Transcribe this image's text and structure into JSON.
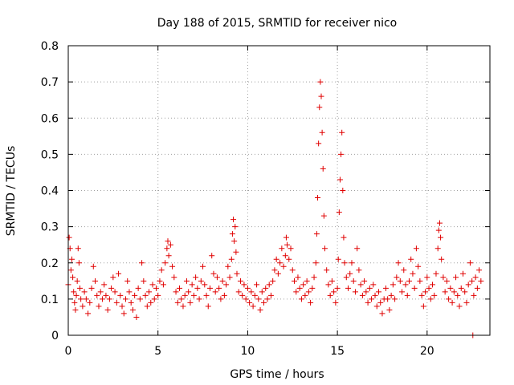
{
  "chart_data": {
    "type": "scatter",
    "title": "Day 188 of 2015, SRMTID for receiver nico",
    "xlabel": "GPS time / hours",
    "ylabel": "SRMTID / TECUs",
    "xlim": [
      0,
      23.5
    ],
    "ylim": [
      0,
      0.8
    ],
    "xticks": [
      0,
      5,
      10,
      15,
      20
    ],
    "yticks": [
      0,
      0.1,
      0.2,
      0.3,
      0.4,
      0.5,
      0.6,
      0.7,
      0.8
    ],
    "xtick_labels": [
      "0",
      "5",
      "10",
      "15",
      "20"
    ],
    "ytick_labels": [
      "0",
      "0.1",
      "0.2",
      "0.3",
      "0.4",
      "0.5",
      "0.6",
      "0.7",
      "0.8"
    ],
    "grid": true,
    "legend": "none",
    "marker": "plus",
    "color": "#e00000",
    "series": [
      {
        "name": "SRMTID",
        "points": [
          [
            0.0,
            0.14
          ],
          [
            0.05,
            0.27
          ],
          [
            0.1,
            0.24
          ],
          [
            0.15,
            0.18
          ],
          [
            0.2,
            0.21
          ],
          [
            0.25,
            0.16
          ],
          [
            0.3,
            0.12
          ],
          [
            0.35,
            0.09
          ],
          [
            0.4,
            0.07
          ],
          [
            0.45,
            0.11
          ],
          [
            0.5,
            0.15
          ],
          [
            0.55,
            0.24
          ],
          [
            0.6,
            0.2
          ],
          [
            0.65,
            0.13
          ],
          [
            0.7,
            0.1
          ],
          [
            0.8,
            0.08
          ],
          [
            0.9,
            0.12
          ],
          [
            1.0,
            0.1
          ],
          [
            1.1,
            0.06
          ],
          [
            1.2,
            0.09
          ],
          [
            1.3,
            0.13
          ],
          [
            1.4,
            0.19
          ],
          [
            1.5,
            0.15
          ],
          [
            1.6,
            0.11
          ],
          [
            1.7,
            0.08
          ],
          [
            1.8,
            0.12
          ],
          [
            1.9,
            0.1
          ],
          [
            2.0,
            0.14
          ],
          [
            2.1,
            0.11
          ],
          [
            2.2,
            0.07
          ],
          [
            2.3,
            0.1
          ],
          [
            2.4,
            0.13
          ],
          [
            2.5,
            0.16
          ],
          [
            2.6,
            0.12
          ],
          [
            2.7,
            0.09
          ],
          [
            2.8,
            0.17
          ],
          [
            2.9,
            0.11
          ],
          [
            3.0,
            0.08
          ],
          [
            3.1,
            0.06
          ],
          [
            3.2,
            0.1
          ],
          [
            3.3,
            0.15
          ],
          [
            3.4,
            0.12
          ],
          [
            3.5,
            0.09
          ],
          [
            3.6,
            0.07
          ],
          [
            3.7,
            0.11
          ],
          [
            3.8,
            0.05
          ],
          [
            3.9,
            0.13
          ],
          [
            4.0,
            0.1
          ],
          [
            4.1,
            0.2
          ],
          [
            4.2,
            0.15
          ],
          [
            4.3,
            0.11
          ],
          [
            4.4,
            0.08
          ],
          [
            4.5,
            0.12
          ],
          [
            4.6,
            0.09
          ],
          [
            4.7,
            0.14
          ],
          [
            4.8,
            0.1
          ],
          [
            4.9,
            0.13
          ],
          [
            5.0,
            0.11
          ],
          [
            5.1,
            0.15
          ],
          [
            5.2,
            0.18
          ],
          [
            5.3,
            0.14
          ],
          [
            5.4,
            0.2
          ],
          [
            5.5,
            0.24
          ],
          [
            5.55,
            0.26
          ],
          [
            5.6,
            0.22
          ],
          [
            5.7,
            0.25
          ],
          [
            5.8,
            0.19
          ],
          [
            5.9,
            0.16
          ],
          [
            6.0,
            0.12
          ],
          [
            6.1,
            0.09
          ],
          [
            6.2,
            0.13
          ],
          [
            6.3,
            0.1
          ],
          [
            6.4,
            0.08
          ],
          [
            6.5,
            0.11
          ],
          [
            6.6,
            0.15
          ],
          [
            6.7,
            0.12
          ],
          [
            6.8,
            0.09
          ],
          [
            6.9,
            0.14
          ],
          [
            7.0,
            0.11
          ],
          [
            7.1,
            0.16
          ],
          [
            7.2,
            0.13
          ],
          [
            7.3,
            0.1
          ],
          [
            7.4,
            0.15
          ],
          [
            7.5,
            0.19
          ],
          [
            7.6,
            0.14
          ],
          [
            7.7,
            0.11
          ],
          [
            7.8,
            0.08
          ],
          [
            7.9,
            0.13
          ],
          [
            8.0,
            0.22
          ],
          [
            8.1,
            0.17
          ],
          [
            8.2,
            0.12
          ],
          [
            8.3,
            0.16
          ],
          [
            8.4,
            0.13
          ],
          [
            8.5,
            0.1
          ],
          [
            8.6,
            0.15
          ],
          [
            8.7,
            0.11
          ],
          [
            8.8,
            0.14
          ],
          [
            8.9,
            0.19
          ],
          [
            9.0,
            0.16
          ],
          [
            9.1,
            0.21
          ],
          [
            9.15,
            0.28
          ],
          [
            9.2,
            0.32
          ],
          [
            9.25,
            0.26
          ],
          [
            9.3,
            0.3
          ],
          [
            9.35,
            0.23
          ],
          [
            9.4,
            0.17
          ],
          [
            9.5,
            0.12
          ],
          [
            9.6,
            0.15
          ],
          [
            9.7,
            0.11
          ],
          [
            9.8,
            0.14
          ],
          [
            9.9,
            0.1
          ],
          [
            10.0,
            0.13
          ],
          [
            10.1,
            0.09
          ],
          [
            10.2,
            0.12
          ],
          [
            10.3,
            0.08
          ],
          [
            10.4,
            0.11
          ],
          [
            10.5,
            0.14
          ],
          [
            10.6,
            0.1
          ],
          [
            10.7,
            0.07
          ],
          [
            10.8,
            0.12
          ],
          [
            10.9,
            0.09
          ],
          [
            11.0,
            0.13
          ],
          [
            11.1,
            0.1
          ],
          [
            11.2,
            0.14
          ],
          [
            11.3,
            0.11
          ],
          [
            11.4,
            0.15
          ],
          [
            11.5,
            0.18
          ],
          [
            11.6,
            0.21
          ],
          [
            11.7,
            0.17
          ],
          [
            11.8,
            0.2
          ],
          [
            11.9,
            0.24
          ],
          [
            12.0,
            0.19
          ],
          [
            12.1,
            0.22
          ],
          [
            12.15,
            0.27
          ],
          [
            12.2,
            0.25
          ],
          [
            12.3,
            0.21
          ],
          [
            12.4,
            0.24
          ],
          [
            12.5,
            0.18
          ],
          [
            12.6,
            0.15
          ],
          [
            12.7,
            0.12
          ],
          [
            12.8,
            0.16
          ],
          [
            12.9,
            0.13
          ],
          [
            13.0,
            0.1
          ],
          [
            13.1,
            0.14
          ],
          [
            13.2,
            0.11
          ],
          [
            13.3,
            0.15
          ],
          [
            13.4,
            0.12
          ],
          [
            13.5,
            0.09
          ],
          [
            13.6,
            0.13
          ],
          [
            13.7,
            0.16
          ],
          [
            13.8,
            0.2
          ],
          [
            13.85,
            0.28
          ],
          [
            13.9,
            0.38
          ],
          [
            13.95,
            0.53
          ],
          [
            14.0,
            0.63
          ],
          [
            14.05,
            0.7
          ],
          [
            14.1,
            0.66
          ],
          [
            14.15,
            0.56
          ],
          [
            14.2,
            0.46
          ],
          [
            14.25,
            0.33
          ],
          [
            14.3,
            0.24
          ],
          [
            14.4,
            0.18
          ],
          [
            14.5,
            0.14
          ],
          [
            14.6,
            0.11
          ],
          [
            14.7,
            0.15
          ],
          [
            14.8,
            0.12
          ],
          [
            14.9,
            0.09
          ],
          [
            15.0,
            0.13
          ],
          [
            15.05,
            0.21
          ],
          [
            15.1,
            0.34
          ],
          [
            15.15,
            0.43
          ],
          [
            15.2,
            0.5
          ],
          [
            15.25,
            0.56
          ],
          [
            15.3,
            0.4
          ],
          [
            15.35,
            0.27
          ],
          [
            15.4,
            0.2
          ],
          [
            15.5,
            0.16
          ],
          [
            15.6,
            0.13
          ],
          [
            15.7,
            0.17
          ],
          [
            15.8,
            0.2
          ],
          [
            15.9,
            0.15
          ],
          [
            16.0,
            0.12
          ],
          [
            16.1,
            0.24
          ],
          [
            16.2,
            0.18
          ],
          [
            16.3,
            0.14
          ],
          [
            16.4,
            0.11
          ],
          [
            16.5,
            0.15
          ],
          [
            16.6,
            0.12
          ],
          [
            16.7,
            0.09
          ],
          [
            16.8,
            0.13
          ],
          [
            16.9,
            0.1
          ],
          [
            17.0,
            0.14
          ],
          [
            17.1,
            0.11
          ],
          [
            17.2,
            0.08
          ],
          [
            17.3,
            0.12
          ],
          [
            17.4,
            0.09
          ],
          [
            17.5,
            0.06
          ],
          [
            17.6,
            0.1
          ],
          [
            17.7,
            0.13
          ],
          [
            17.8,
            0.1
          ],
          [
            17.9,
            0.07
          ],
          [
            18.0,
            0.11
          ],
          [
            18.1,
            0.14
          ],
          [
            18.2,
            0.1
          ],
          [
            18.3,
            0.16
          ],
          [
            18.4,
            0.2
          ],
          [
            18.5,
            0.15
          ],
          [
            18.6,
            0.12
          ],
          [
            18.7,
            0.18
          ],
          [
            18.8,
            0.14
          ],
          [
            18.9,
            0.11
          ],
          [
            19.0,
            0.15
          ],
          [
            19.1,
            0.21
          ],
          [
            19.2,
            0.17
          ],
          [
            19.3,
            0.13
          ],
          [
            19.4,
            0.24
          ],
          [
            19.5,
            0.19
          ],
          [
            19.6,
            0.15
          ],
          [
            19.7,
            0.11
          ],
          [
            19.8,
            0.08
          ],
          [
            19.9,
            0.12
          ],
          [
            20.0,
            0.16
          ],
          [
            20.1,
            0.13
          ],
          [
            20.2,
            0.1
          ],
          [
            20.3,
            0.14
          ],
          [
            20.4,
            0.11
          ],
          [
            20.5,
            0.17
          ],
          [
            20.6,
            0.24
          ],
          [
            20.65,
            0.29
          ],
          [
            20.7,
            0.31
          ],
          [
            20.75,
            0.27
          ],
          [
            20.8,
            0.21
          ],
          [
            20.9,
            0.16
          ],
          [
            21.0,
            0.12
          ],
          [
            21.1,
            0.15
          ],
          [
            21.2,
            0.1
          ],
          [
            21.3,
            0.13
          ],
          [
            21.4,
            0.09
          ],
          [
            21.5,
            0.12
          ],
          [
            21.6,
            0.16
          ],
          [
            21.7,
            0.11
          ],
          [
            21.8,
            0.08
          ],
          [
            21.9,
            0.13
          ],
          [
            22.0,
            0.17
          ],
          [
            22.1,
            0.12
          ],
          [
            22.2,
            0.09
          ],
          [
            22.3,
            0.14
          ],
          [
            22.4,
            0.2
          ],
          [
            22.5,
            0.15
          ],
          [
            22.55,
            0.0
          ],
          [
            22.6,
            0.11
          ],
          [
            22.7,
            0.16
          ],
          [
            22.8,
            0.13
          ],
          [
            22.9,
            0.18
          ],
          [
            23.0,
            0.15
          ]
        ]
      }
    ]
  }
}
